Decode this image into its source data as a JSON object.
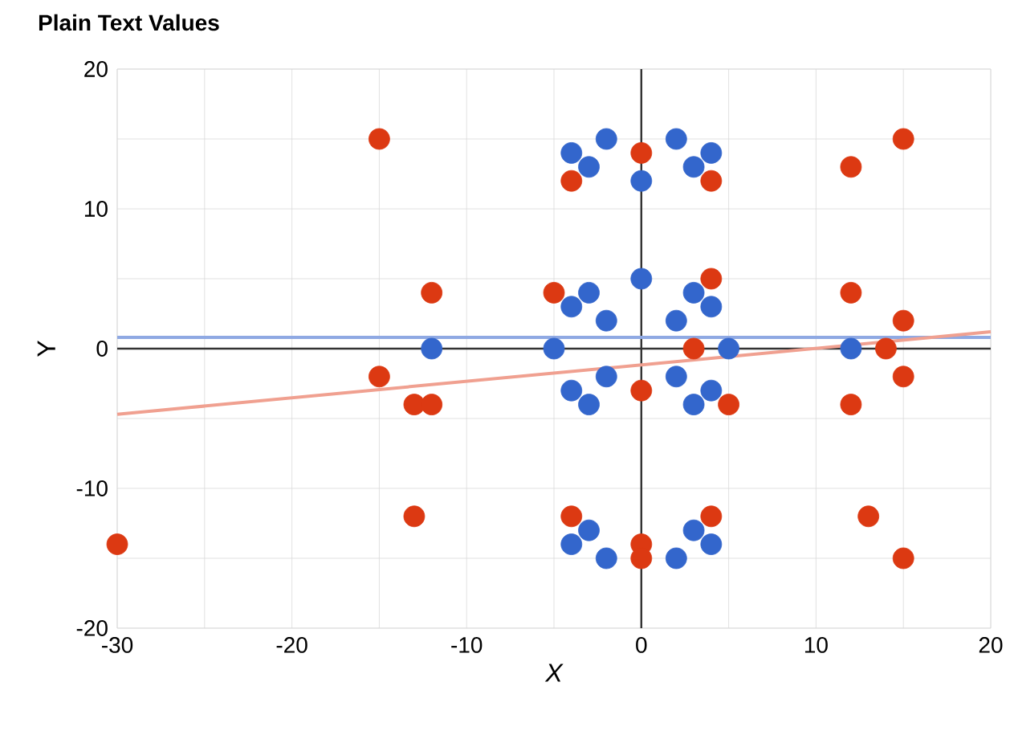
{
  "chart_data": {
    "type": "scatter",
    "title": "Plain Text Values",
    "xlabel": "X",
    "ylabel": "Y",
    "xlim": [
      -30,
      20
    ],
    "ylim": [
      -20,
      20
    ],
    "xticks": [
      -30,
      {
        "value": -25,
        "label": null
      },
      -20,
      {
        "value": -15,
        "label": null
      },
      -10,
      {
        "value": -5,
        "label": null
      },
      0,
      {
        "value": 5,
        "label": null
      },
      10,
      {
        "value": 15,
        "label": null
      },
      20
    ],
    "yticks": [
      -20,
      {
        "value": -15,
        "label": null
      },
      -10,
      {
        "value": -5,
        "label": null
      },
      0,
      {
        "value": 5,
        "label": null
      },
      10,
      {
        "value": 15,
        "label": null
      },
      20
    ],
    "grid": true,
    "series": [
      {
        "marker": "circle",
        "color": "#3366cc",
        "x": [
          -4,
          -3,
          -2,
          0,
          2,
          3,
          4,
          -3,
          -4,
          -2,
          0,
          2,
          3,
          4,
          -12,
          -5,
          5,
          12,
          -4,
          -3,
          -2,
          2,
          3,
          4,
          -4,
          -3,
          -2,
          2,
          3,
          4
        ],
        "values": [
          14,
          13,
          15,
          12,
          15,
          13,
          14,
          4,
          3,
          2,
          5,
          2,
          4,
          3,
          0,
          0,
          0,
          0,
          -3,
          -4,
          -2,
          -2,
          -4,
          -3,
          -14,
          -13,
          -15,
          -15,
          -13,
          -14
        ]
      },
      {
        "marker": "circle",
        "color": "#dc3912",
        "x": [
          -15,
          -4,
          0,
          4,
          12,
          15,
          -12,
          -5,
          4,
          12,
          15,
          3,
          14,
          -15,
          -13,
          -12,
          0,
          5,
          12,
          15,
          -30,
          -13,
          -4,
          4,
          13,
          0,
          0,
          15
        ],
        "values": [
          15,
          12,
          14,
          12,
          13,
          15,
          4,
          4,
          5,
          4,
          2,
          0,
          0,
          -2,
          -4,
          -4,
          -3,
          -4,
          -4,
          -2,
          -14,
          -12,
          -12,
          -12,
          -12,
          -14,
          -15,
          -15
        ]
      },
      {
        "type": "line",
        "marker": "none",
        "color": "#8fa9e3",
        "x": [
          -30,
          20
        ],
        "values": [
          0.8,
          0.8
        ]
      },
      {
        "type": "line",
        "marker": "none",
        "color": "#f0a090",
        "x": [
          -30,
          20
        ],
        "values": [
          -4.7,
          1.2
        ]
      }
    ]
  }
}
